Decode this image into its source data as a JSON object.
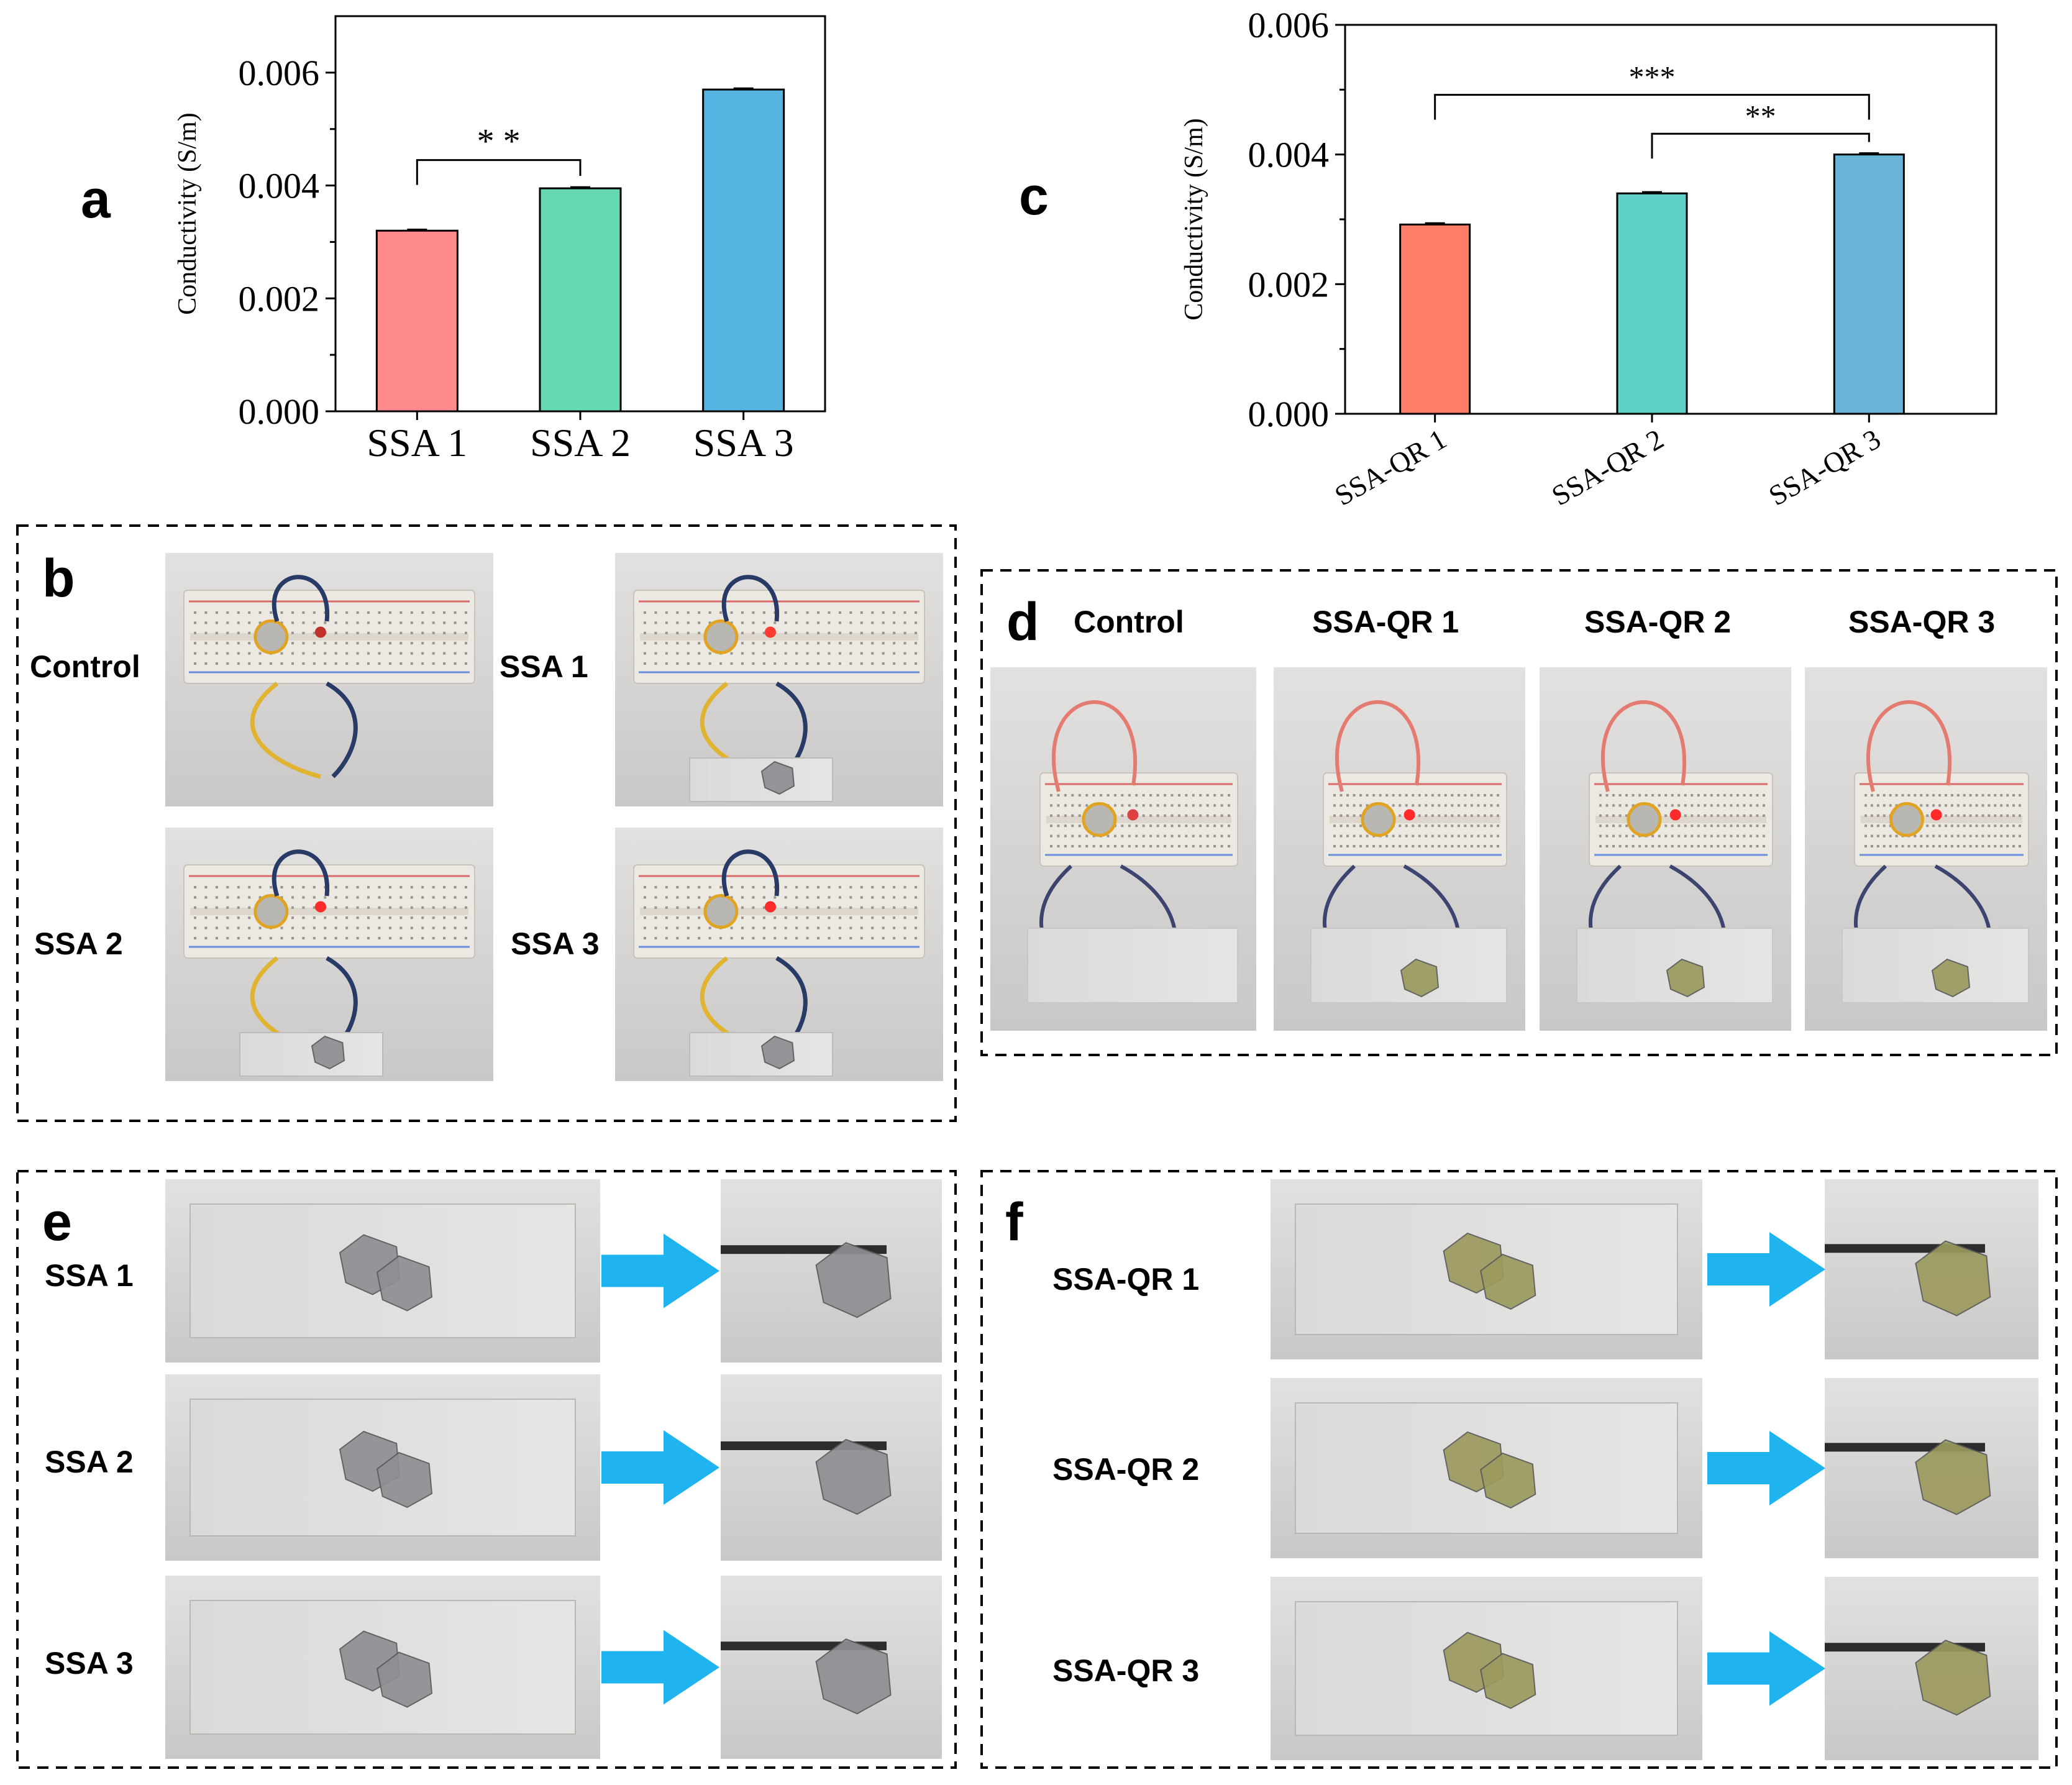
{
  "chart_data": [
    {
      "type": "bar",
      "panel": "a",
      "categories": [
        "SSA 1",
        "SSA 2",
        "SSA 3"
      ],
      "values": [
        0.0032,
        0.00395,
        0.0057
      ],
      "errors": [
        2e-05,
        2e-05,
        2e-05
      ],
      "colors": [
        "#ff8a8c",
        "#66d9b4",
        "#55b4e2"
      ],
      "ylabel": "Conductivity (S/m)",
      "ylim": [
        0,
        0.007
      ],
      "yticks": [
        "0.000",
        "0.002",
        "0.004",
        "0.006"
      ],
      "ytick_values": [
        0,
        0.002,
        0.004,
        0.006
      ],
      "significance": [
        {
          "from": 0,
          "to": 1,
          "label": "* *",
          "at": 0.00445
        }
      ],
      "grid": false
    },
    {
      "type": "bar",
      "panel": "c",
      "categories": [
        "SSA-QR 1",
        "SSA-QR 2",
        "SSA-QR 3"
      ],
      "values": [
        0.00292,
        0.0034,
        0.004
      ],
      "errors": [
        2e-05,
        2e-05,
        2e-05
      ],
      "colors": [
        "#ff7d68",
        "#5fd1c9",
        "#68b5d9"
      ],
      "ylabel": "Conductivity (S/m)",
      "ylim": [
        0,
        0.006
      ],
      "yticks": [
        "0.000",
        "0.002",
        "0.004",
        "0.006"
      ],
      "ytick_values": [
        0,
        0.002,
        0.004,
        0.006
      ],
      "significance": [
        {
          "from": 0,
          "to": 2,
          "label": "***",
          "at": 0.00492
        },
        {
          "from": 1,
          "to": 2,
          "label": "**",
          "at": 0.00432
        }
      ],
      "grid": false
    }
  ],
  "panel_letters": {
    "a": "a",
    "b": "b",
    "c": "c",
    "d": "d",
    "e": "e",
    "f": "f"
  },
  "panel_b": {
    "labels": [
      "Control",
      "SSA 1",
      "SSA 2",
      "SSA 3"
    ]
  },
  "panel_d": {
    "labels": [
      "Control",
      "SSA-QR 1",
      "SSA-QR 2",
      "SSA-QR 3"
    ]
  },
  "panel_e": {
    "labels": [
      "SSA 1",
      "SSA 2",
      "SSA 3"
    ]
  },
  "panel_f": {
    "labels": [
      "SSA-QR 1",
      "SSA-QR 2",
      "SSA-QR 3"
    ]
  },
  "colors": {
    "photo_bg": "#d9d8d6",
    "breadboard": "#ece8e2",
    "arrow": "#1fb4ef",
    "sample_ssa": "#8d8f93",
    "sample_qr": "#9c9a5e"
  }
}
